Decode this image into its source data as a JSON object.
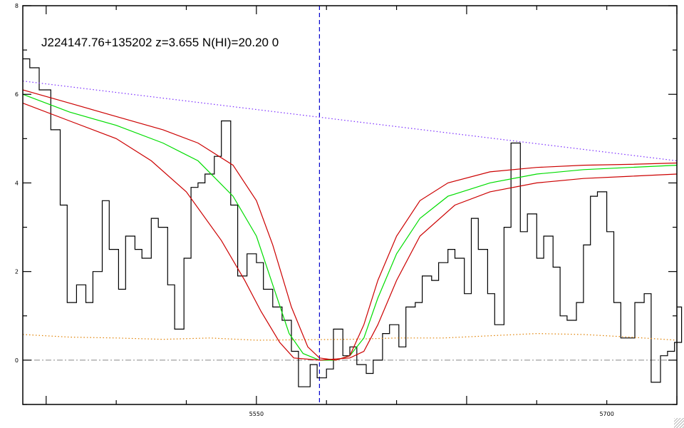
{
  "chart_data": {
    "type": "line",
    "title": "J224147.76+135202 z=3.655 N(HI)=20.20 0",
    "xlim": [
      5450,
      5730
    ],
    "ylim": [
      -1,
      8
    ],
    "x_tick_labels": [
      {
        "value": 5550,
        "label": "5550"
      },
      {
        "value": 5700,
        "label": "5700"
      }
    ],
    "y_tick_labels": [
      {
        "value": 0,
        "label": "0"
      },
      {
        "value": 2,
        "label": "2"
      },
      {
        "value": 4,
        "label": "4"
      },
      {
        "value": 6,
        "label": "6"
      },
      {
        "value": 8,
        "label": "8"
      }
    ],
    "grid": false,
    "vertical_marker": {
      "x": 5577,
      "color": "#0000cc"
    },
    "zero_line": {
      "y": 0,
      "color": "#888888"
    },
    "series": [
      {
        "kind": "observed-flux-histogram",
        "color": "#000000",
        "points": [
          [
            5450,
            6.8
          ],
          [
            5453,
            6.6
          ],
          [
            5457,
            6.1
          ],
          [
            5462,
            5.2
          ],
          [
            5466,
            3.5
          ],
          [
            5469,
            1.3
          ],
          [
            5473,
            1.7
          ],
          [
            5477,
            1.3
          ],
          [
            5480,
            2.0
          ],
          [
            5484,
            3.6
          ],
          [
            5487,
            2.5
          ],
          [
            5491,
            1.6
          ],
          [
            5494,
            2.8
          ],
          [
            5498,
            2.5
          ],
          [
            5501,
            2.3
          ],
          [
            5505,
            3.2
          ],
          [
            5508,
            3.0
          ],
          [
            5512,
            1.7
          ],
          [
            5515,
            0.7
          ],
          [
            5519,
            2.3
          ],
          [
            5522,
            3.9
          ],
          [
            5525,
            4.0
          ],
          [
            5528,
            4.2
          ],
          [
            5532,
            4.6
          ],
          [
            5535,
            5.4
          ],
          [
            5539,
            3.5
          ],
          [
            5542,
            1.9
          ],
          [
            5546,
            2.4
          ],
          [
            5550,
            2.2
          ],
          [
            5553,
            1.6
          ],
          [
            5557,
            1.2
          ],
          [
            5561,
            0.9
          ],
          [
            5565,
            0.2
          ],
          [
            5568,
            -0.6
          ],
          [
            5573,
            -0.1
          ],
          [
            5576,
            -0.4
          ],
          [
            5580,
            -0.2
          ],
          [
            5583,
            0.7
          ],
          [
            5587,
            0.1
          ],
          [
            5590,
            0.3
          ],
          [
            5593,
            -0.1
          ],
          [
            5597,
            -0.3
          ],
          [
            5600,
            0.0
          ],
          [
            5604,
            0.6
          ],
          [
            5607,
            0.8
          ],
          [
            5611,
            0.3
          ],
          [
            5614,
            1.2
          ],
          [
            5618,
            1.3
          ],
          [
            5621,
            1.9
          ],
          [
            5625,
            1.8
          ],
          [
            5628,
            2.2
          ],
          [
            5632,
            2.5
          ],
          [
            5635,
            2.3
          ],
          [
            5639,
            1.5
          ],
          [
            5642,
            3.2
          ],
          [
            5645,
            2.5
          ],
          [
            5649,
            1.5
          ],
          [
            5652,
            0.8
          ],
          [
            5656,
            3.0
          ],
          [
            5659,
            4.9
          ],
          [
            5663,
            2.9
          ],
          [
            5666,
            3.3
          ],
          [
            5670,
            2.3
          ],
          [
            5673,
            2.8
          ],
          [
            5677,
            2.1
          ],
          [
            5680,
            1.0
          ],
          [
            5683,
            0.9
          ],
          [
            5687,
            1.3
          ],
          [
            5690,
            2.6
          ],
          [
            5693,
            3.7
          ],
          [
            5696,
            3.8
          ],
          [
            5700,
            2.9
          ],
          [
            5703,
            1.3
          ],
          [
            5706,
            0.5
          ],
          [
            5709,
            0.5
          ],
          [
            5712,
            1.3
          ],
          [
            5716,
            1.5
          ],
          [
            5719,
            -0.5
          ],
          [
            5723,
            0.1
          ],
          [
            5726,
            0.2
          ],
          [
            5729,
            0.4
          ],
          [
            5732,
            1.2
          ]
        ]
      },
      {
        "kind": "continuum",
        "color": "#7a2cff",
        "points": [
          [
            5450,
            6.3
          ],
          [
            5730,
            4.5
          ]
        ]
      },
      {
        "kind": "error",
        "color": "#e08000",
        "points": [
          [
            5450,
            0.58
          ],
          [
            5470,
            0.52
          ],
          [
            5490,
            0.5
          ],
          [
            5510,
            0.47
          ],
          [
            5530,
            0.5
          ],
          [
            5550,
            0.45
          ],
          [
            5570,
            0.46
          ],
          [
            5590,
            0.47
          ],
          [
            5610,
            0.5
          ],
          [
            5630,
            0.5
          ],
          [
            5650,
            0.55
          ],
          [
            5670,
            0.6
          ],
          [
            5690,
            0.58
          ],
          [
            5710,
            0.52
          ],
          [
            5730,
            0.45
          ]
        ]
      },
      {
        "kind": "model",
        "color": "#00dd00",
        "points": [
          [
            5450,
            6.0
          ],
          [
            5470,
            5.6
          ],
          [
            5490,
            5.3
          ],
          [
            5510,
            4.9
          ],
          [
            5525,
            4.5
          ],
          [
            5540,
            3.7
          ],
          [
            5550,
            2.8
          ],
          [
            5557,
            1.7
          ],
          [
            5564,
            0.6
          ],
          [
            5570,
            0.15
          ],
          [
            5577,
            0.0
          ],
          [
            5584,
            0.0
          ],
          [
            5590,
            0.1
          ],
          [
            5596,
            0.5
          ],
          [
            5602,
            1.4
          ],
          [
            5610,
            2.4
          ],
          [
            5620,
            3.2
          ],
          [
            5632,
            3.7
          ],
          [
            5650,
            4.0
          ],
          [
            5670,
            4.2
          ],
          [
            5690,
            4.3
          ],
          [
            5710,
            4.35
          ],
          [
            5730,
            4.4
          ]
        ]
      },
      {
        "kind": "model-upper",
        "color": "#cc0000",
        "points": [
          [
            5450,
            6.1
          ],
          [
            5470,
            5.8
          ],
          [
            5490,
            5.5
          ],
          [
            5510,
            5.2
          ],
          [
            5525,
            4.9
          ],
          [
            5540,
            4.4
          ],
          [
            5550,
            3.6
          ],
          [
            5557,
            2.6
          ],
          [
            5565,
            1.2
          ],
          [
            5572,
            0.3
          ],
          [
            5577,
            0.05
          ],
          [
            5584,
            0.0
          ],
          [
            5590,
            0.1
          ],
          [
            5596,
            0.8
          ],
          [
            5602,
            1.8
          ],
          [
            5610,
            2.8
          ],
          [
            5620,
            3.6
          ],
          [
            5632,
            4.0
          ],
          [
            5650,
            4.25
          ],
          [
            5670,
            4.35
          ],
          [
            5690,
            4.4
          ],
          [
            5710,
            4.42
          ],
          [
            5730,
            4.45
          ]
        ]
      },
      {
        "kind": "model-lower",
        "color": "#cc0000",
        "points": [
          [
            5450,
            5.8
          ],
          [
            5470,
            5.4
          ],
          [
            5490,
            5.0
          ],
          [
            5505,
            4.5
          ],
          [
            5520,
            3.8
          ],
          [
            5535,
            2.7
          ],
          [
            5545,
            1.8
          ],
          [
            5552,
            1.1
          ],
          [
            5560,
            0.4
          ],
          [
            5566,
            0.05
          ],
          [
            5577,
            0.0
          ],
          [
            5590,
            0.05
          ],
          [
            5596,
            0.2
          ],
          [
            5602,
            0.8
          ],
          [
            5610,
            1.8
          ],
          [
            5620,
            2.8
          ],
          [
            5635,
            3.5
          ],
          [
            5650,
            3.8
          ],
          [
            5670,
            4.0
          ],
          [
            5690,
            4.1
          ],
          [
            5710,
            4.15
          ],
          [
            5730,
            4.2
          ]
        ]
      }
    ]
  }
}
